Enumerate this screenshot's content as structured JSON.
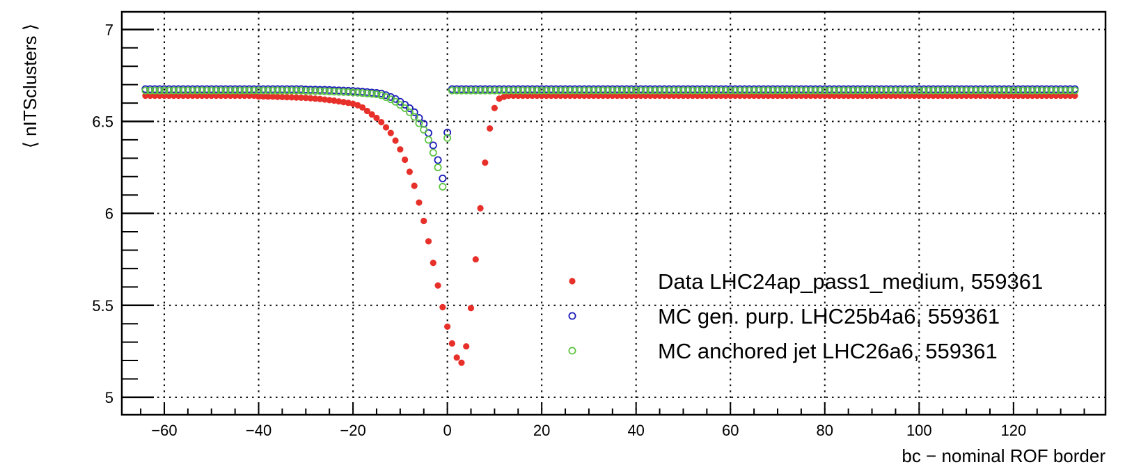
{
  "chart_data": {
    "type": "scatter",
    "title": "",
    "xlabel": "bc − nominal ROF border",
    "ylabel": "⟨ nITSclusters ⟩",
    "xlim": [
      -69,
      139.5
    ],
    "ylim": [
      4.905,
      7.096
    ],
    "grid": true,
    "legend_position": "lower-right",
    "x_ticks": [
      -60,
      -40,
      -20,
      0,
      20,
      40,
      60,
      80,
      100,
      120
    ],
    "x_tick_labels": [
      "−60",
      "−40",
      "−20",
      "0",
      "20",
      "40",
      "60",
      "80",
      "100",
      "120"
    ],
    "y_ticks": [
      5,
      5.5,
      6,
      6.5,
      7
    ],
    "y_tick_labels": [
      "5",
      "5.5",
      "6",
      "6.5",
      "7"
    ],
    "x_start": -64,
    "x_end": 133,
    "series": [
      {
        "name": "Data LHC24ap_pass1_medium, 559361",
        "marker": "filled-circle",
        "color": "#e8302a",
        "plateau": 6.64,
        "points": {
          "-40": 6.636,
          "-39": 6.636,
          "-38": 6.635,
          "-37": 6.635,
          "-36": 6.634,
          "-35": 6.633,
          "-34": 6.632,
          "-33": 6.631,
          "-32": 6.63,
          "-31": 6.629,
          "-30": 6.628,
          "-29": 6.626,
          "-28": 6.624,
          "-27": 6.622,
          "-26": 6.619,
          "-25": 6.616,
          "-24": 6.613,
          "-23": 6.609,
          "-22": 6.605,
          "-21": 6.601,
          "-20": 6.596,
          "-19": 6.588,
          "-18": 6.576,
          "-17": 6.557,
          "-16": 6.538,
          "-15": 6.519,
          "-14": 6.496,
          "-13": 6.468,
          "-12": 6.437,
          "-11": 6.396,
          "-10": 6.348,
          "-9": 6.292,
          "-8": 6.226,
          "-7": 6.15,
          "-6": 6.059,
          "-5": 5.959,
          "-4": 5.848,
          "-3": 5.731,
          "-2": 5.608,
          "-1": 5.49,
          "0": 5.384,
          "1": 5.293,
          "2": 5.216,
          "3": 5.188,
          "4": 5.277,
          "5": 5.485,
          "6": 5.75,
          "7": 6.028,
          "8": 6.276,
          "9": 6.462,
          "10": 6.573,
          "11": 6.624,
          "12": 6.634
        }
      },
      {
        "name": "MC gen. purp. LHC25b4a6, 559361",
        "marker": "open-circle",
        "color": "#1a1ab8",
        "plateau": 6.676,
        "points": {
          "-30": 6.674,
          "-29": 6.673,
          "-28": 6.673,
          "-27": 6.672,
          "-26": 6.672,
          "-25": 6.671,
          "-24": 6.67,
          "-23": 6.669,
          "-22": 6.668,
          "-21": 6.667,
          "-20": 6.666,
          "-19": 6.664,
          "-18": 6.662,
          "-17": 6.66,
          "-16": 6.657,
          "-15": 6.655,
          "-14": 6.652,
          "-13": 6.643,
          "-12": 6.633,
          "-11": 6.622,
          "-10": 6.607,
          "-9": 6.591,
          "-8": 6.572,
          "-7": 6.55,
          "-6": 6.519,
          "-5": 6.487,
          "-4": 6.437,
          "-3": 6.37,
          "-2": 6.29,
          "-1": 6.19,
          "0": 6.44
        }
      },
      {
        "name": "MC anchored jet LHC26a6, 559361",
        "marker": "open-circle",
        "color": "#5ec443",
        "plateau": 6.668,
        "points": {
          "-30": 6.666,
          "-29": 6.666,
          "-28": 6.665,
          "-27": 6.665,
          "-26": 6.664,
          "-25": 6.663,
          "-24": 6.662,
          "-23": 6.661,
          "-22": 6.66,
          "-21": 6.659,
          "-20": 6.658,
          "-19": 6.656,
          "-18": 6.654,
          "-17": 6.652,
          "-16": 6.65,
          "-15": 6.647,
          "-14": 6.642,
          "-13": 6.632,
          "-12": 6.62,
          "-11": 6.607,
          "-10": 6.59,
          "-9": 6.572,
          "-8": 6.55,
          "-7": 6.525,
          "-6": 6.49,
          "-5": 6.455,
          "-4": 6.4,
          "-3": 6.33,
          "-2": 6.25,
          "-1": 6.145,
          "0": 6.41
        }
      }
    ]
  }
}
